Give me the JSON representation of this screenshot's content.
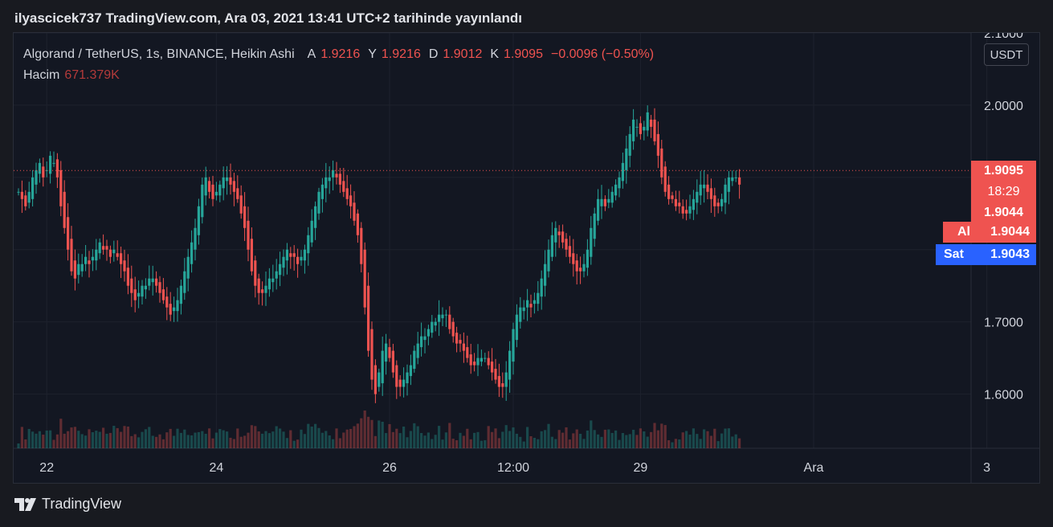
{
  "header": {
    "published": "ilyascicek737 TradingView.com, Ara 03, 2021 13:41 UTC+2 tarihinde yayınlandı"
  },
  "legend": {
    "symbol": "Algorand / TetherUS, 1s, BINANCE, Heikin Ashi",
    "open_label": "A",
    "open": "1.9216",
    "high_label": "Y",
    "high": "1.9216",
    "low_label": "D",
    "low": "1.9012",
    "close_label": "K",
    "close": "1.9095",
    "change": "−0.0096 (−0.50%)",
    "volume_label": "Hacim",
    "volume": "671.379K"
  },
  "price_axis": {
    "currency": "USDT",
    "ticks": [
      {
        "value": 2.1,
        "label": "2.1000"
      },
      {
        "value": 2.0,
        "label": "2.0000"
      },
      {
        "value": 1.7,
        "label": "1.7000"
      },
      {
        "value": 1.6,
        "label": "1.6000"
      }
    ]
  },
  "price_labels": {
    "last": "1.9095",
    "countdown": "18:29",
    "last2": "1.9044",
    "ask_label": "Al",
    "ask": "1.9044",
    "bid_label": "Sat",
    "bid": "1.9043"
  },
  "colors": {
    "up": "#26a69a",
    "down": "#ef5350",
    "bid": "#2962ff",
    "background": "#131722"
  },
  "footer": {
    "brand": "TradingView"
  },
  "chart_data": {
    "type": "candlestick",
    "title": "",
    "ylim": [
      1.525,
      2.1
    ],
    "x_ticks": [
      "22",
      "24",
      "26",
      "12:00",
      "29",
      "Ara",
      "3"
    ],
    "x_tick_index": [
      8,
      56,
      105,
      140,
      176,
      225,
      274
    ],
    "close_path": [
      1.88,
      1.87,
      1.86,
      1.88,
      1.9,
      1.91,
      1.92,
      1.9,
      1.91,
      1.93,
      1.92,
      1.9,
      1.86,
      1.83,
      1.8,
      1.77,
      1.76,
      1.78,
      1.78,
      1.79,
      1.78,
      1.79,
      1.8,
      1.81,
      1.8,
      1.8,
      1.79,
      1.8,
      1.79,
      1.78,
      1.77,
      1.75,
      1.74,
      1.73,
      1.74,
      1.75,
      1.75,
      1.76,
      1.76,
      1.75,
      1.74,
      1.73,
      1.72,
      1.71,
      1.72,
      1.73,
      1.75,
      1.77,
      1.79,
      1.81,
      1.83,
      1.86,
      1.89,
      1.9,
      1.88,
      1.87,
      1.88,
      1.89,
      1.9,
      1.9,
      1.89,
      1.88,
      1.87,
      1.85,
      1.83,
      1.8,
      1.77,
      1.75,
      1.74,
      1.74,
      1.75,
      1.76,
      1.76,
      1.77,
      1.78,
      1.79,
      1.8,
      1.79,
      1.79,
      1.78,
      1.79,
      1.8,
      1.82,
      1.84,
      1.86,
      1.88,
      1.89,
      1.9,
      1.9,
      1.91,
      1.9,
      1.89,
      1.88,
      1.87,
      1.86,
      1.84,
      1.82,
      1.78,
      1.72,
      1.66,
      1.62,
      1.6,
      1.63,
      1.66,
      1.67,
      1.65,
      1.63,
      1.61,
      1.61,
      1.62,
      1.63,
      1.64,
      1.66,
      1.67,
      1.68,
      1.68,
      1.69,
      1.7,
      1.7,
      1.71,
      1.71,
      1.71,
      1.69,
      1.68,
      1.67,
      1.67,
      1.66,
      1.65,
      1.64,
      1.64,
      1.65,
      1.65,
      1.65,
      1.64,
      1.63,
      1.62,
      1.61,
      1.61,
      1.63,
      1.66,
      1.69,
      1.71,
      1.72,
      1.72,
      1.73,
      1.72,
      1.73,
      1.74,
      1.76,
      1.78,
      1.8,
      1.82,
      1.83,
      1.82,
      1.81,
      1.8,
      1.79,
      1.78,
      1.77,
      1.77,
      1.78,
      1.8,
      1.83,
      1.85,
      1.87,
      1.87,
      1.86,
      1.87,
      1.88,
      1.89,
      1.9,
      1.92,
      1.94,
      1.96,
      1.98,
      1.97,
      1.96,
      1.97,
      1.99,
      1.97,
      1.95,
      1.93,
      1.9,
      1.88,
      1.87,
      1.87,
      1.86,
      1.86,
      1.85,
      1.85,
      1.86,
      1.87,
      1.88,
      1.89,
      1.89,
      1.88,
      1.87,
      1.86,
      1.86,
      1.87,
      1.89,
      1.9,
      1.9,
      1.9,
      1.89
    ]
  }
}
